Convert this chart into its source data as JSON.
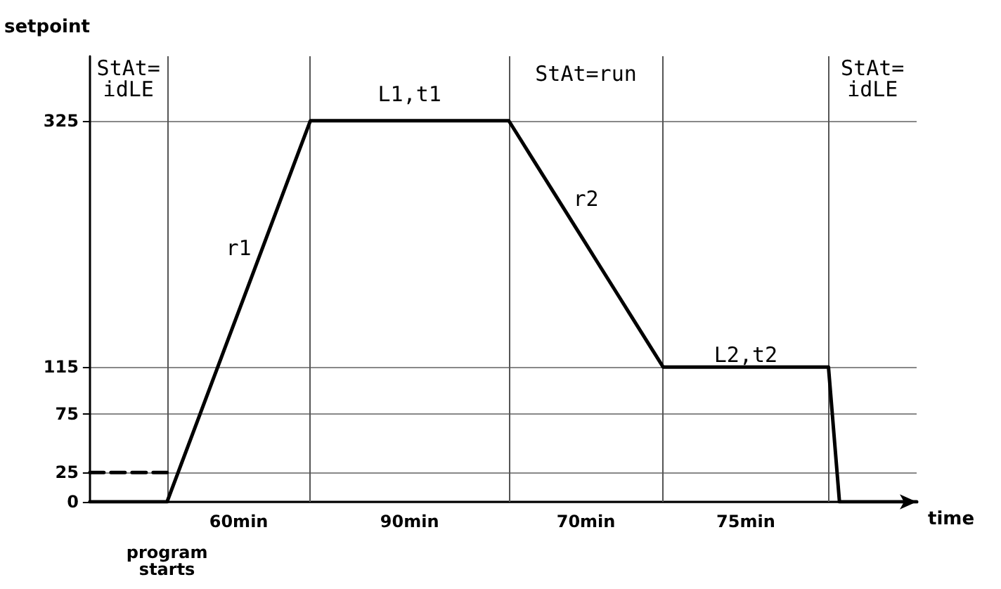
{
  "chart_data": {
    "type": "line",
    "xlabel": "time",
    "ylabel": "setpoint",
    "categories": [
      null,
      null,
      null,
      null,
      null,
      null,
      null,
      null,
      null,
      null,
      null,
      null,
      null,
      null,
      null,
      null,
      null,
      null,
      null,
      null,
      null,
      null,
      null,
      null,
      null,
      null,
      null,
      null,
      null,
      null,
      null,
      null,
      null,
      null,
      null,
      null,
      null,
      null,
      null,
      null,
      null,
      null,
      null,
      null,
      null,
      null,
      null,
      null,
      null,
      null,
      null,
      null,
      null,
      null,
      null,
      null,
      null,
      null,
      null,
      null,
      null,
      null,
      null,
      null,
      null,
      null,
      null,
      null,
      null,
      null,
      null,
      null,
      null,
      null,
      null,
      null
    ],
    "ylim": [
      0,
      380
    ],
    "yticks": [
      0,
      25,
      75,
      115,
      325
    ],
    "tick_labels": "y",
    "grid": true,
    "series": [
      {
        "color": "#000000",
        "line_style": "solid",
        "values": [
          0,
          0,
          0,
          0,
          0,
          0,
          0,
          0,
          25,
          50,
          75,
          100,
          125,
          150,
          175,
          200,
          225,
          250,
          275,
          300,
          325,
          325,
          325,
          325,
          325,
          325,
          325,
          325,
          325,
          325,
          325,
          325,
          325,
          325,
          325,
          325,
          325,
          325,
          325,
          310,
          295,
          280,
          265,
          250,
          235,
          220,
          205,
          190,
          175,
          160,
          145,
          130,
          115,
          115,
          115,
          115,
          115,
          115,
          115,
          115,
          115,
          115,
          115,
          115,
          115,
          115,
          115,
          115,
          0,
          0,
          0,
          0,
          0,
          0,
          0,
          0
        ]
      },
      {
        "color": "#000000",
        "line_style": "dashed",
        "values": [
          25,
          25,
          25,
          25,
          25,
          25,
          25,
          25,
          null,
          null,
          null,
          null,
          null,
          null,
          null,
          null,
          null,
          null,
          null,
          null,
          null,
          null,
          null,
          null,
          null,
          null,
          null,
          null,
          null,
          null,
          null,
          null,
          null,
          null,
          null,
          null,
          null,
          null,
          null,
          null,
          null,
          null,
          null,
          null,
          null,
          null,
          null,
          null,
          null,
          null,
          null,
          null,
          null,
          null,
          null,
          null,
          null,
          null,
          null,
          null,
          null,
          null,
          null,
          null,
          null,
          null,
          null,
          null,
          null,
          null,
          null,
          null,
          null,
          null,
          null,
          null
        ]
      }
    ],
    "annotations": [
      "StAt=\nidLE",
      "StAt=run",
      "StAt=\nidLE",
      "r1",
      "L1,t1",
      "r2",
      "L2,t2",
      "program\nstarts",
      "60min",
      "90min",
      "70min",
      "75min"
    ]
  }
}
